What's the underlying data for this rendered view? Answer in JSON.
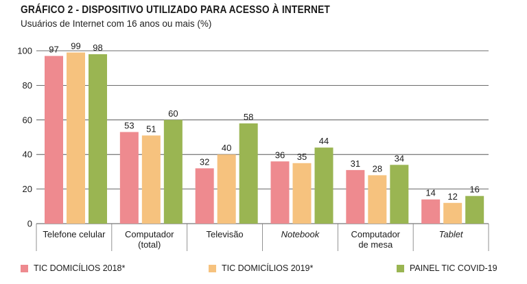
{
  "title": "GRÁFICO 2 - DISPOSITIVO UTILIZADO PARA ACESSO À INTERNET",
  "subtitle": "Usuários de Internet com 16 anos ou mais (%)",
  "chart_data": {
    "type": "bar",
    "title": "GRÁFICO 2 - DISPOSITIVO UTILIZADO PARA ACESSO À INTERNET",
    "subtitle": "Usuários de Internet com 16 anos ou mais (%)",
    "ylim": [
      0,
      100
    ],
    "yticks": [
      0,
      20,
      40,
      60,
      80,
      100
    ],
    "grid": true,
    "legend_position": "bottom",
    "categories": [
      {
        "label": [
          "Telefone celular"
        ],
        "italic": false
      },
      {
        "label": [
          "Computador",
          "(total)"
        ],
        "italic": false
      },
      {
        "label": [
          "Televisão"
        ],
        "italic": false
      },
      {
        "label": [
          "Notebook"
        ],
        "italic": true
      },
      {
        "label": [
          "Computador",
          "de mesa"
        ],
        "italic": false
      },
      {
        "label": [
          "Tablet"
        ],
        "italic": true
      }
    ],
    "series": [
      {
        "name": "TIC DOMICÍLIOS 2018*",
        "color": "#ee8a8f",
        "values": [
          97,
          53,
          32,
          36,
          31,
          14
        ]
      },
      {
        "name": "TIC DOMICÍLIOS 2019*",
        "color": "#f6c27e",
        "values": [
          99,
          51,
          40,
          35,
          28,
          12
        ]
      },
      {
        "name": "PAINEL TIC COVID-19",
        "color": "#9ab552",
        "values": [
          98,
          60,
          58,
          44,
          34,
          16
        ]
      }
    ]
  }
}
